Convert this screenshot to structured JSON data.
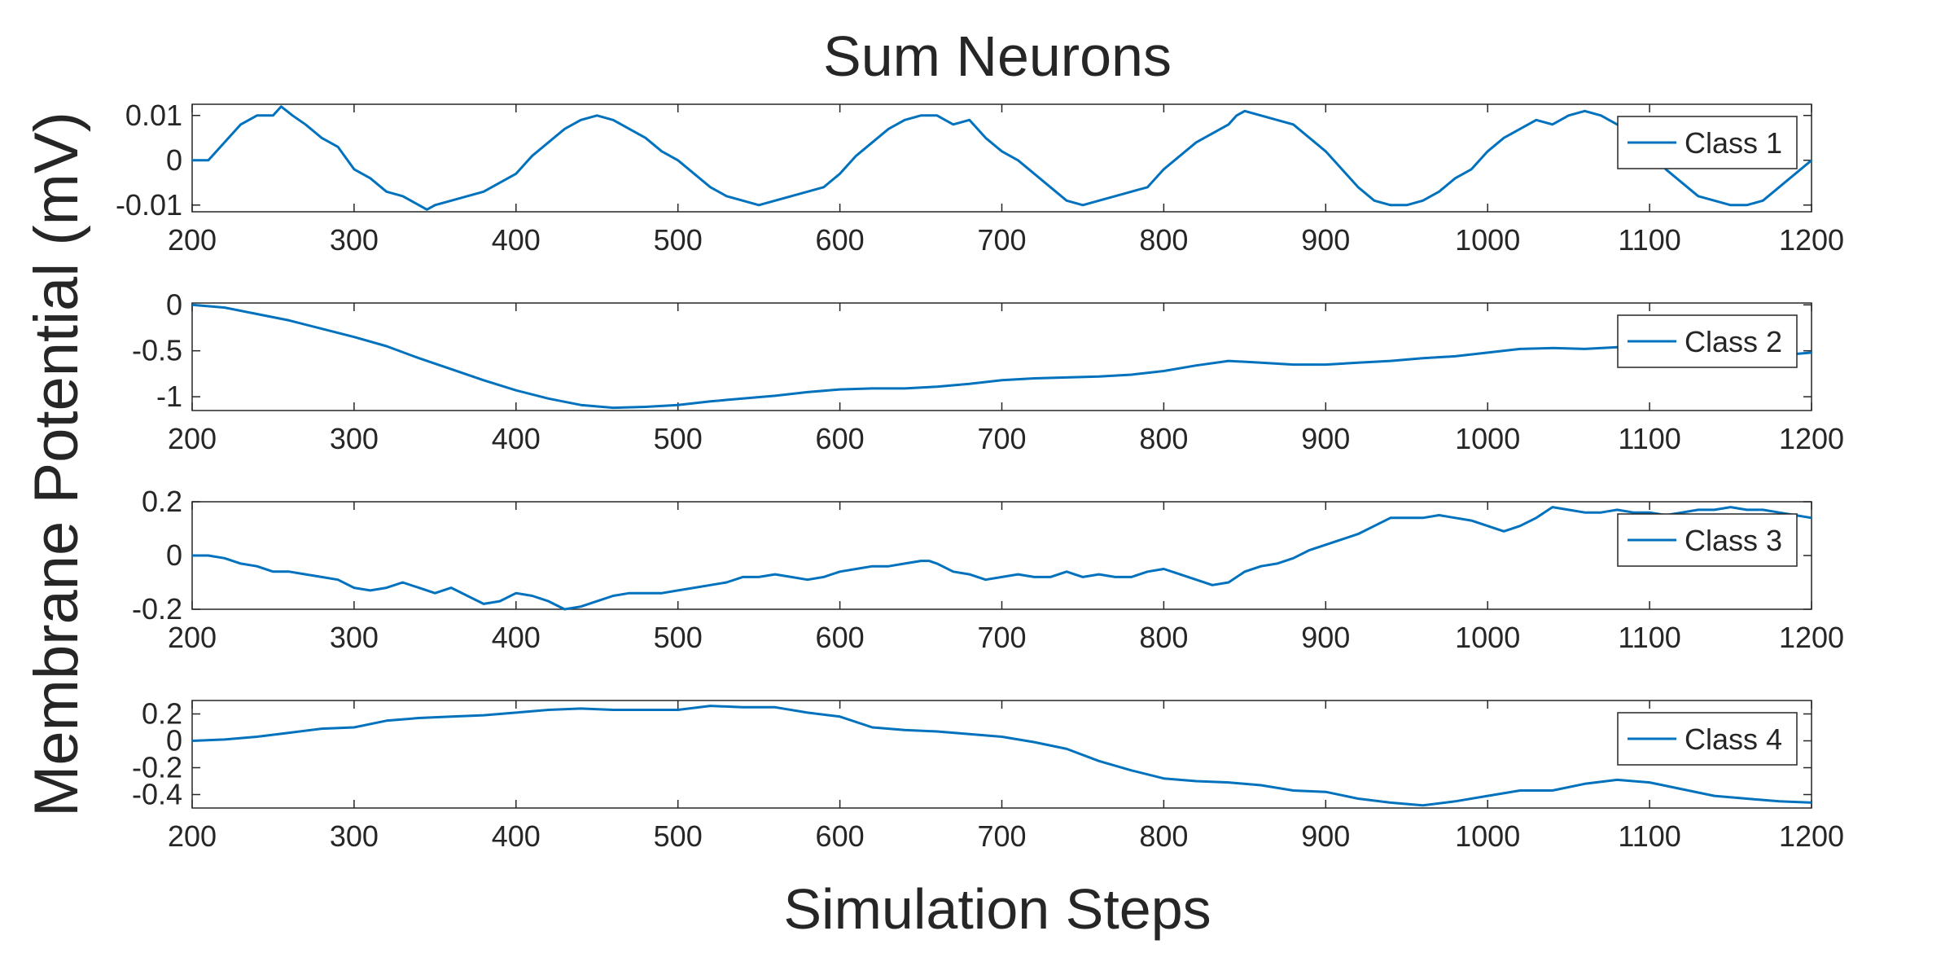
{
  "title": "Sum Neurons",
  "xlabel": "Simulation Steps",
  "ylabel": "Membrane Potential (mV)",
  "line_color": "#0072BD",
  "chart_data": [
    {
      "type": "line",
      "legend": "Class 1",
      "xlim": [
        200,
        1200
      ],
      "ylim": [
        -0.0115,
        0.0125
      ],
      "xticks": [
        200,
        300,
        400,
        500,
        600,
        700,
        800,
        900,
        1000,
        1100,
        1200
      ],
      "xtick_labels": [
        "200",
        "300",
        "400",
        "500",
        "600",
        "700",
        "800",
        "900",
        "1000",
        "1100",
        "1200"
      ],
      "yticks": [
        -0.01,
        0,
        0.01
      ],
      "ytick_labels": [
        "-0.01",
        "0",
        "0.01"
      ],
      "series": [
        {
          "name": "Class 1",
          "x": [
            200,
            210,
            220,
            230,
            240,
            250,
            255,
            262,
            270,
            280,
            285,
            290,
            300,
            310,
            320,
            330,
            340,
            345,
            350,
            360,
            370,
            380,
            390,
            400,
            410,
            420,
            430,
            440,
            450,
            460,
            470,
            480,
            490,
            500,
            510,
            520,
            530,
            540,
            550,
            560,
            570,
            580,
            590,
            600,
            610,
            620,
            630,
            640,
            650,
            660,
            670,
            680,
            690,
            700,
            710,
            720,
            730,
            740,
            750,
            760,
            770,
            780,
            790,
            800,
            810,
            820,
            830,
            840,
            845,
            850,
            860,
            870,
            880,
            890,
            900,
            910,
            920,
            930,
            940,
            950,
            960,
            970,
            980,
            990,
            1000,
            1010,
            1020,
            1030,
            1040,
            1050,
            1060,
            1070,
            1080,
            1090,
            1100,
            1110,
            1120,
            1130,
            1140,
            1150,
            1160,
            1170,
            1180,
            1190,
            1200
          ],
          "y": [
            0.0,
            0.0,
            0.004,
            0.008,
            0.01,
            0.01,
            0.012,
            0.01,
            0.008,
            0.005,
            0.004,
            0.003,
            -0.002,
            -0.004,
            -0.007,
            -0.008,
            -0.01,
            -0.011,
            -0.01,
            -0.009,
            -0.008,
            -0.007,
            -0.005,
            -0.003,
            0.001,
            0.004,
            0.007,
            0.009,
            0.01,
            0.009,
            0.007,
            0.005,
            0.002,
            0.0,
            -0.003,
            -0.006,
            -0.008,
            -0.009,
            -0.01,
            -0.009,
            -0.008,
            -0.007,
            -0.006,
            -0.003,
            0.001,
            0.004,
            0.007,
            0.009,
            0.01,
            0.01,
            0.008,
            0.009,
            0.005,
            0.002,
            0.0,
            -0.003,
            -0.006,
            -0.009,
            -0.01,
            -0.009,
            -0.008,
            -0.007,
            -0.006,
            -0.002,
            0.001,
            0.004,
            0.006,
            0.008,
            0.01,
            0.011,
            0.01,
            0.009,
            0.008,
            0.005,
            0.002,
            -0.002,
            -0.006,
            -0.009,
            -0.01,
            -0.01,
            -0.009,
            -0.007,
            -0.004,
            -0.002,
            0.002,
            0.005,
            0.007,
            0.009,
            0.008,
            0.01,
            0.011,
            0.01,
            0.008,
            0.006,
            0.002,
            -0.002,
            -0.005,
            -0.008,
            -0.009,
            -0.01,
            -0.01,
            -0.009,
            -0.006,
            -0.003,
            0.0
          ]
        }
      ]
    },
    {
      "type": "line",
      "legend": "Class 2",
      "xlim": [
        200,
        1200
      ],
      "ylim": [
        -1.15,
        0.02
      ],
      "xticks": [
        200,
        300,
        400,
        500,
        600,
        700,
        800,
        900,
        1000,
        1100,
        1200
      ],
      "xtick_labels": [
        "200",
        "300",
        "400",
        "500",
        "600",
        "700",
        "800",
        "900",
        "1000",
        "1100",
        "1200"
      ],
      "yticks": [
        -1,
        -0.5,
        0
      ],
      "ytick_labels": [
        "-1",
        "-0.5",
        "0"
      ],
      "series": [
        {
          "name": "Class 2",
          "x": [
            200,
            220,
            240,
            260,
            280,
            300,
            320,
            340,
            360,
            380,
            400,
            420,
            440,
            460,
            480,
            500,
            520,
            540,
            560,
            580,
            600,
            620,
            640,
            660,
            680,
            700,
            720,
            740,
            760,
            780,
            800,
            820,
            840,
            860,
            880,
            900,
            920,
            940,
            960,
            980,
            1000,
            1020,
            1040,
            1060,
            1080,
            1100,
            1120,
            1140,
            1160,
            1180,
            1200
          ],
          "y": [
            0.0,
            -0.03,
            -0.1,
            -0.17,
            -0.26,
            -0.35,
            -0.45,
            -0.58,
            -0.7,
            -0.82,
            -0.93,
            -1.02,
            -1.09,
            -1.12,
            -1.11,
            -1.09,
            -1.05,
            -1.02,
            -0.99,
            -0.95,
            -0.92,
            -0.91,
            -0.91,
            -0.89,
            -0.86,
            -0.82,
            -0.8,
            -0.79,
            -0.78,
            -0.76,
            -0.72,
            -0.66,
            -0.61,
            -0.63,
            -0.65,
            -0.65,
            -0.63,
            -0.61,
            -0.58,
            -0.56,
            -0.52,
            -0.48,
            -0.47,
            -0.48,
            -0.46,
            -0.49,
            -0.5,
            -0.52,
            -0.54,
            -0.55,
            -0.52
          ]
        }
      ]
    },
    {
      "type": "line",
      "legend": "Class 3",
      "xlim": [
        200,
        1200
      ],
      "ylim": [
        -0.2,
        0.2
      ],
      "xticks": [
        200,
        300,
        400,
        500,
        600,
        700,
        800,
        900,
        1000,
        1100,
        1200
      ],
      "xtick_labels": [
        "200",
        "300",
        "400",
        "500",
        "600",
        "700",
        "800",
        "900",
        "1000",
        "1100",
        "1200"
      ],
      "yticks": [
        -0.2,
        0,
        0.2
      ],
      "ytick_labels": [
        "-0.2",
        "0",
        "0.2"
      ],
      "series": [
        {
          "name": "Class 3",
          "x": [
            200,
            210,
            220,
            230,
            240,
            250,
            260,
            270,
            280,
            290,
            300,
            310,
            320,
            330,
            340,
            350,
            360,
            370,
            380,
            390,
            400,
            410,
            420,
            430,
            440,
            450,
            460,
            470,
            480,
            490,
            500,
            510,
            520,
            530,
            540,
            550,
            560,
            570,
            580,
            590,
            600,
            610,
            620,
            630,
            640,
            650,
            655,
            660,
            670,
            680,
            690,
            700,
            710,
            720,
            730,
            740,
            750,
            760,
            770,
            780,
            790,
            800,
            810,
            820,
            830,
            840,
            850,
            860,
            870,
            880,
            890,
            900,
            910,
            920,
            930,
            940,
            950,
            960,
            970,
            980,
            990,
            1000,
            1010,
            1020,
            1030,
            1040,
            1050,
            1060,
            1070,
            1080,
            1090,
            1100,
            1110,
            1120,
            1130,
            1140,
            1150,
            1160,
            1170,
            1180,
            1190,
            1200
          ],
          "y": [
            0.0,
            0.0,
            -0.01,
            -0.03,
            -0.04,
            -0.06,
            -0.06,
            -0.07,
            -0.08,
            -0.09,
            -0.12,
            -0.13,
            -0.12,
            -0.1,
            -0.12,
            -0.14,
            -0.12,
            -0.15,
            -0.18,
            -0.17,
            -0.14,
            -0.15,
            -0.17,
            -0.2,
            -0.19,
            -0.17,
            -0.15,
            -0.14,
            -0.14,
            -0.14,
            -0.13,
            -0.12,
            -0.11,
            -0.1,
            -0.08,
            -0.08,
            -0.07,
            -0.08,
            -0.09,
            -0.08,
            -0.06,
            -0.05,
            -0.04,
            -0.04,
            -0.03,
            -0.02,
            -0.02,
            -0.03,
            -0.06,
            -0.07,
            -0.09,
            -0.08,
            -0.07,
            -0.08,
            -0.08,
            -0.06,
            -0.08,
            -0.07,
            -0.08,
            -0.08,
            -0.06,
            -0.05,
            -0.07,
            -0.09,
            -0.11,
            -0.1,
            -0.06,
            -0.04,
            -0.03,
            -0.01,
            0.02,
            0.04,
            0.06,
            0.08,
            0.11,
            0.14,
            0.14,
            0.14,
            0.15,
            0.14,
            0.13,
            0.11,
            0.09,
            0.11,
            0.14,
            0.18,
            0.17,
            0.16,
            0.16,
            0.17,
            0.16,
            0.16,
            0.15,
            0.16,
            0.17,
            0.17,
            0.18,
            0.17,
            0.17,
            0.16,
            0.15,
            0.14
          ]
        }
      ]
    },
    {
      "type": "line",
      "legend": "Class 4",
      "xlim": [
        200,
        1200
      ],
      "ylim": [
        -0.5,
        0.3
      ],
      "xticks": [
        200,
        300,
        400,
        500,
        600,
        700,
        800,
        900,
        1000,
        1100,
        1200
      ],
      "xtick_labels": [
        "200",
        "300",
        "400",
        "500",
        "600",
        "700",
        "800",
        "900",
        "1000",
        "1100",
        "1200"
      ],
      "yticks": [
        -0.4,
        -0.2,
        0,
        0.2
      ],
      "ytick_labels": [
        "-0.4",
        "-0.2",
        "0",
        "0.2"
      ],
      "series": [
        {
          "name": "Class 4",
          "x": [
            200,
            220,
            240,
            260,
            280,
            300,
            320,
            340,
            360,
            380,
            400,
            420,
            440,
            460,
            480,
            500,
            520,
            540,
            560,
            580,
            600,
            620,
            640,
            660,
            680,
            700,
            720,
            740,
            760,
            780,
            800,
            820,
            840,
            860,
            880,
            900,
            920,
            940,
            960,
            980,
            1000,
            1020,
            1040,
            1060,
            1080,
            1100,
            1120,
            1140,
            1160,
            1180,
            1200
          ],
          "y": [
            0.0,
            0.01,
            0.03,
            0.06,
            0.09,
            0.1,
            0.15,
            0.17,
            0.18,
            0.19,
            0.21,
            0.23,
            0.24,
            0.23,
            0.23,
            0.23,
            0.26,
            0.25,
            0.25,
            0.21,
            0.18,
            0.1,
            0.08,
            0.07,
            0.05,
            0.03,
            -0.01,
            -0.06,
            -0.15,
            -0.22,
            -0.28,
            -0.3,
            -0.31,
            -0.33,
            -0.37,
            -0.38,
            -0.43,
            -0.46,
            -0.48,
            -0.45,
            -0.41,
            -0.37,
            -0.37,
            -0.32,
            -0.29,
            -0.31,
            -0.36,
            -0.41,
            -0.43,
            -0.45,
            -0.46
          ]
        }
      ]
    }
  ]
}
